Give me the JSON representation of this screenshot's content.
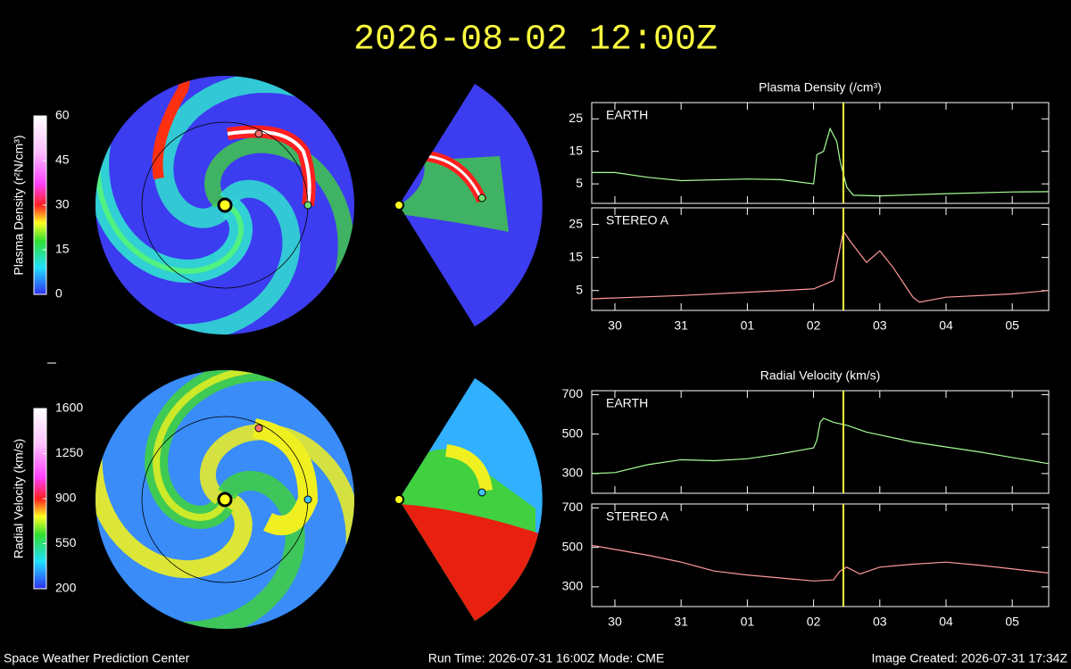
{
  "header": {
    "title": "2026-08-02 12:00Z"
  },
  "colorbars": [
    {
      "label": "Plasma Density (r²N/cm³)",
      "ticks": [
        0,
        15,
        30,
        45,
        60
      ],
      "lim": [
        0,
        60
      ]
    },
    {
      "label": "Radial Velocity (km/s)",
      "ticks": [
        200,
        550,
        900,
        1250,
        1600
      ],
      "lim": [
        200,
        1600
      ]
    }
  ],
  "chart_data": [
    {
      "type": "line",
      "title": "Plasma Density (/cm³)",
      "x": [
        -0.35,
        0,
        0.5,
        1,
        2,
        2.5,
        3,
        3.05,
        3.15,
        3.25,
        3.35,
        3.4,
        3.5,
        3.6,
        4,
        5,
        6,
        6.55
      ],
      "series": [
        {
          "name": "EARTH",
          "color": "#a8ff98",
          "values": [
            8.5,
            8.5,
            7,
            6,
            6.5,
            6.3,
            5,
            14,
            15,
            22,
            18,
            12,
            4,
            1.5,
            1.3,
            2,
            2.5,
            2.6
          ]
        }
      ],
      "xlim": [
        -0.35,
        6.55
      ],
      "ylim": [
        -1,
        30
      ],
      "yticks": [
        5,
        15,
        25
      ],
      "xticks": [
        {
          "value": 0,
          "label": "30"
        },
        {
          "value": 1,
          "label": "31"
        },
        {
          "value": 2,
          "label": "01"
        },
        {
          "value": 3,
          "label": "02"
        },
        {
          "value": 4,
          "label": "03"
        },
        {
          "value": 5,
          "label": "04"
        },
        {
          "value": 6,
          "label": "05"
        }
      ],
      "now": 3.45
    },
    {
      "type": "line",
      "x": [
        -0.35,
        1,
        2,
        3,
        3.3,
        3.45,
        3.55,
        3.8,
        4.0,
        4.2,
        4.5,
        4.6,
        5,
        6,
        6.55
      ],
      "series": [
        {
          "name": "STEREO A",
          "color": "#ff9a9a",
          "values": [
            2.5,
            3.5,
            4.5,
            5.5,
            8,
            23,
            20,
            13.5,
            17,
            12,
            3,
            1.5,
            3,
            4,
            5
          ]
        }
      ],
      "xlim": [
        -0.35,
        6.55
      ],
      "ylim": [
        -1,
        30
      ],
      "yticks": [
        5,
        15,
        25
      ],
      "xticks": [
        {
          "value": 0,
          "label": "30"
        },
        {
          "value": 1,
          "label": "31"
        },
        {
          "value": 2,
          "label": "01"
        },
        {
          "value": 3,
          "label": "02"
        },
        {
          "value": 4,
          "label": "03"
        },
        {
          "value": 5,
          "label": "04"
        },
        {
          "value": 6,
          "label": "05"
        }
      ],
      "now": 3.45
    },
    {
      "type": "line",
      "title": "Radial Velocity (km/s)",
      "x": [
        -0.35,
        0,
        0.5,
        1,
        1.5,
        2,
        2.5,
        3,
        3.05,
        3.1,
        3.15,
        3.3,
        3.5,
        3.8,
        4.5,
        5.5,
        6.55
      ],
      "series": [
        {
          "name": "EARTH",
          "color": "#a8ff98",
          "values": [
            300,
            305,
            345,
            370,
            365,
            375,
            400,
            430,
            470,
            560,
            580,
            560,
            545,
            510,
            460,
            410,
            350
          ]
        }
      ],
      "xlim": [
        -0.35,
        6.55
      ],
      "ylim": [
        200,
        720
      ],
      "yticks": [
        300,
        500,
        700
      ],
      "xticks": [
        {
          "value": 0,
          "label": "30"
        },
        {
          "value": 1,
          "label": "31"
        },
        {
          "value": 2,
          "label": "01"
        },
        {
          "value": 3,
          "label": "02"
        },
        {
          "value": 4,
          "label": "03"
        },
        {
          "value": 5,
          "label": "04"
        },
        {
          "value": 6,
          "label": "05"
        }
      ],
      "now": 3.45
    },
    {
      "type": "line",
      "x": [
        -0.35,
        0.5,
        1,
        1.5,
        2,
        3,
        3.3,
        3.4,
        3.5,
        3.7,
        4,
        4.5,
        5,
        5.5,
        6.55
      ],
      "series": [
        {
          "name": "STEREO A",
          "color": "#ff9a9a",
          "values": [
            510,
            460,
            425,
            380,
            360,
            330,
            335,
            380,
            400,
            365,
            400,
            415,
            425,
            410,
            370
          ]
        }
      ],
      "xlim": [
        -0.35,
        6.55
      ],
      "ylim": [
        200,
        720
      ],
      "yticks": [
        300,
        500,
        700
      ],
      "xticks": [
        {
          "value": 0,
          "label": "30"
        },
        {
          "value": 1,
          "label": "31"
        },
        {
          "value": 2,
          "label": "01"
        },
        {
          "value": 3,
          "label": "02"
        },
        {
          "value": 4,
          "label": "03"
        },
        {
          "value": 5,
          "label": "04"
        },
        {
          "value": 6,
          "label": "05"
        }
      ],
      "now": 3.45
    }
  ],
  "footer": {
    "left": "Space Weather Prediction Center",
    "center": "Run Time: 2026-07-31 16:00Z  Mode: CME",
    "right": "Image Created: 2026-07-31 17:34Z"
  }
}
